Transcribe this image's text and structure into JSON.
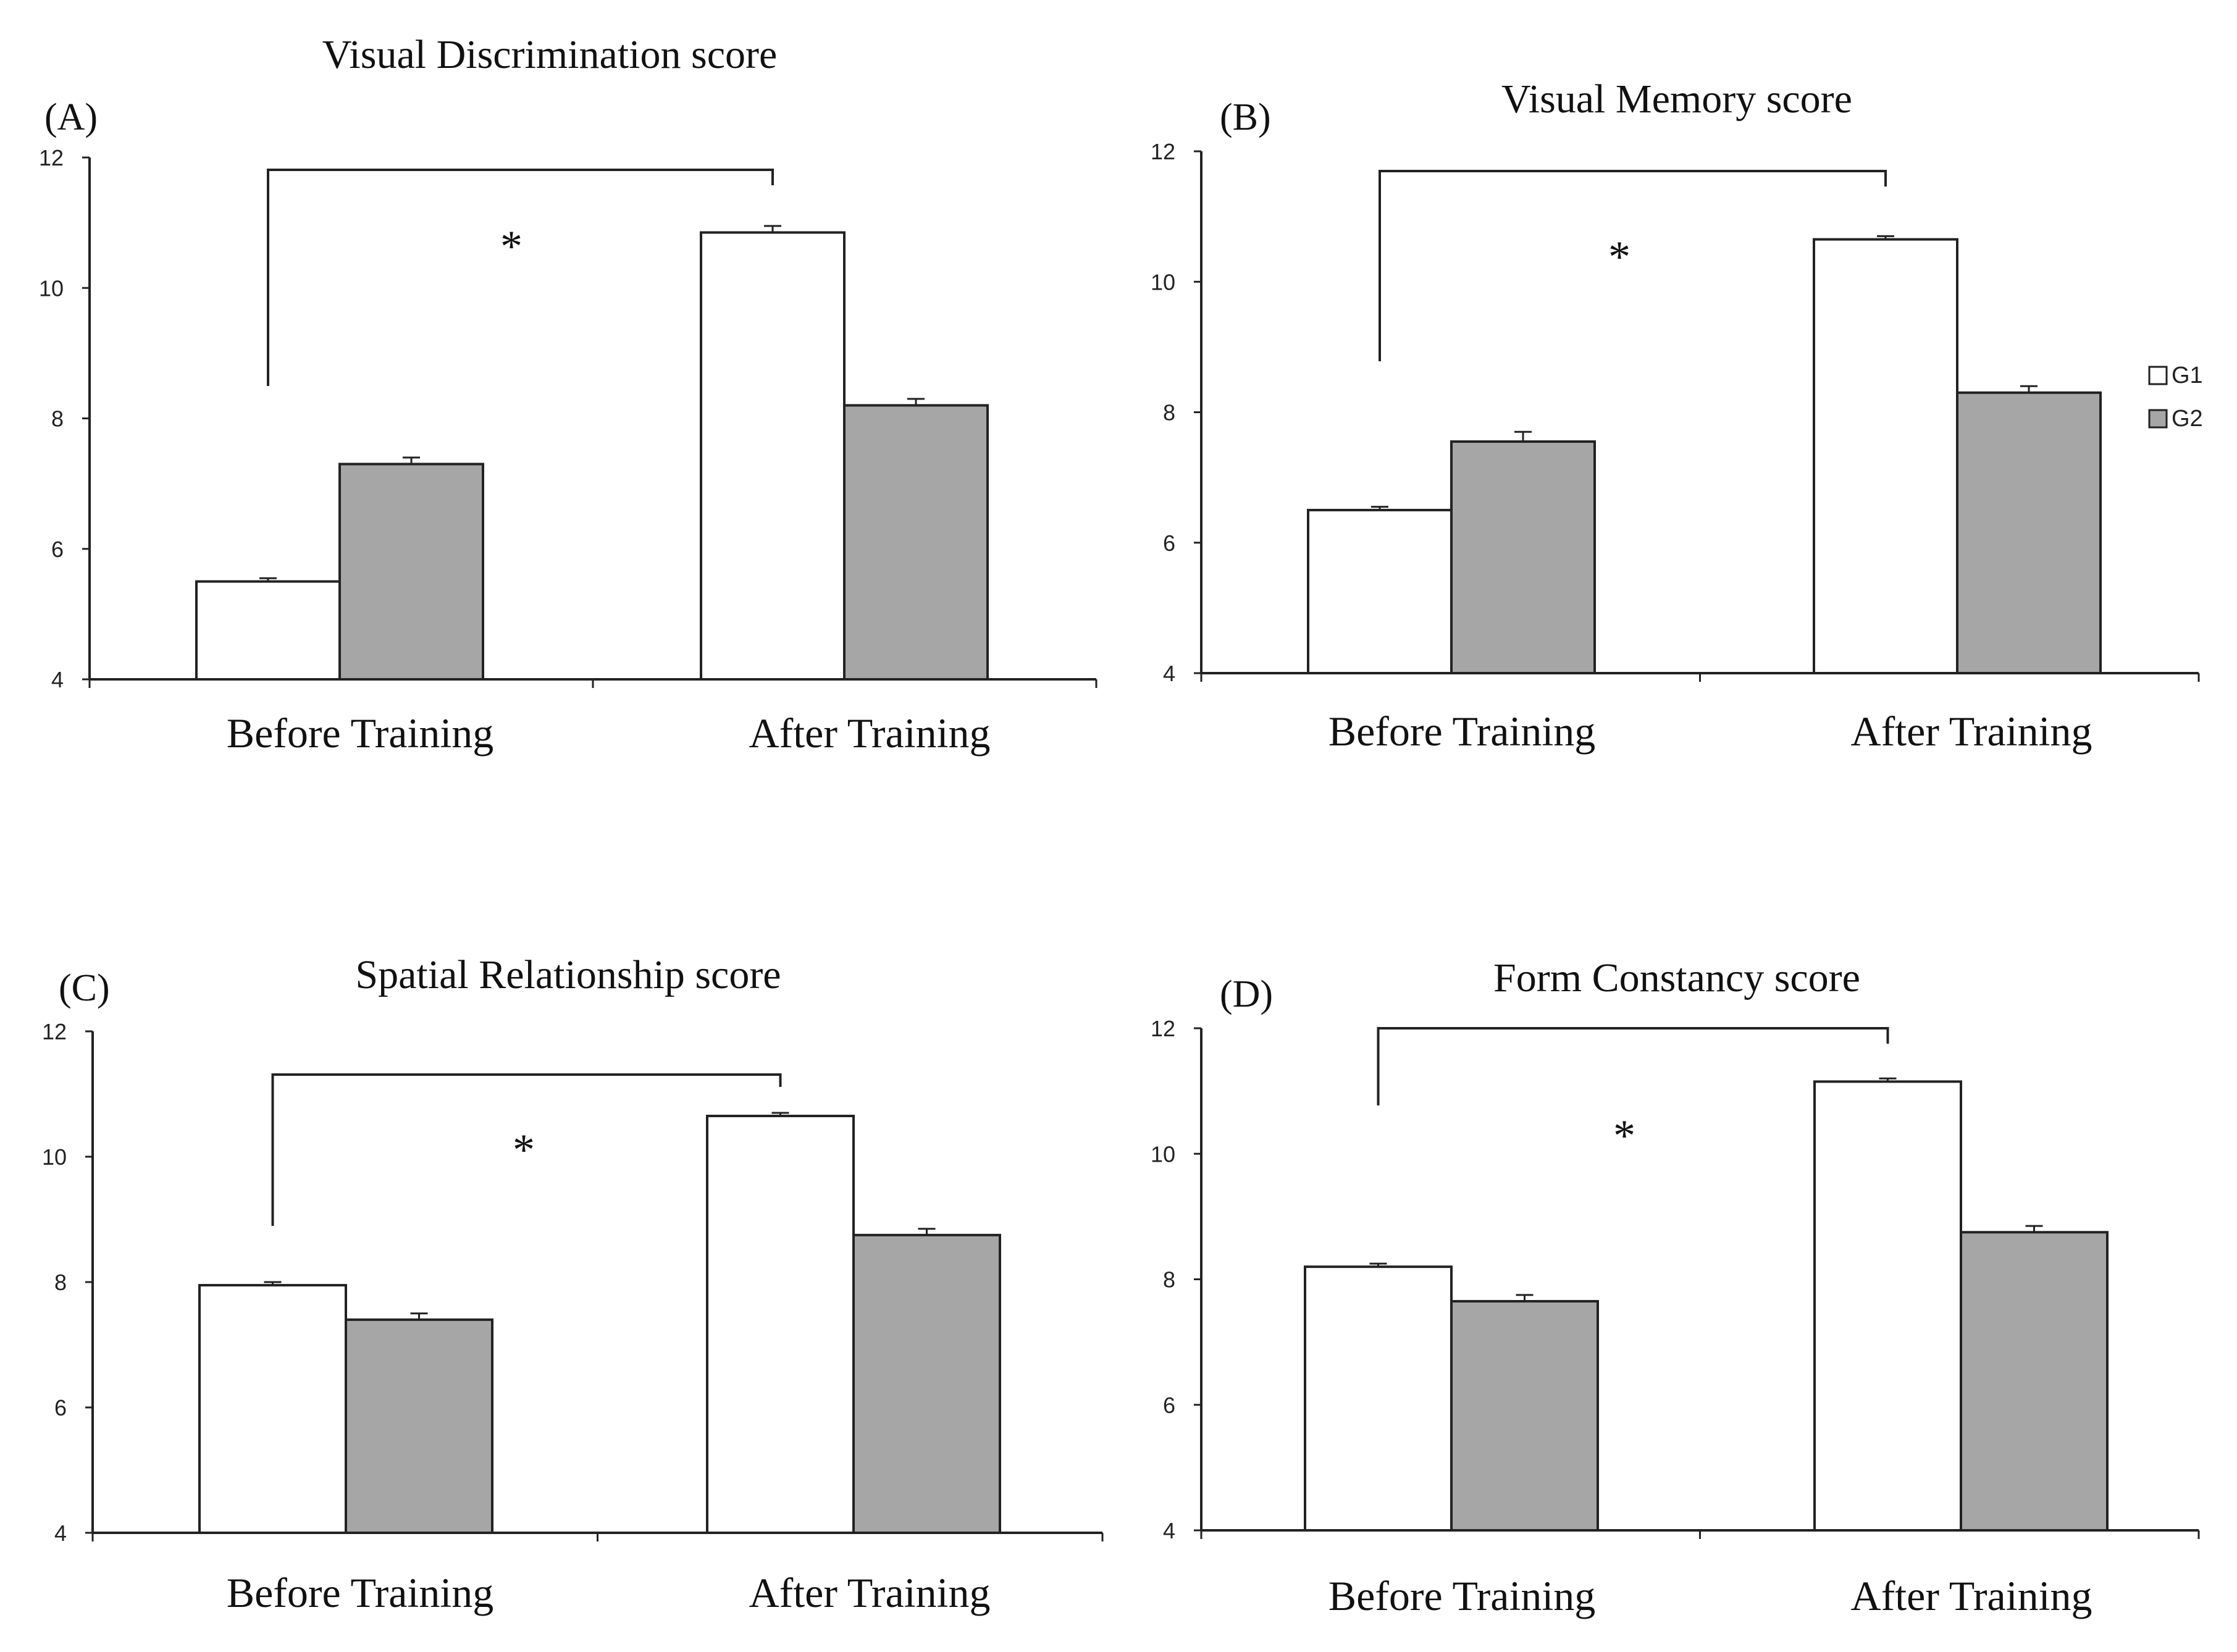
{
  "chart_data": [
    {
      "type": "bar",
      "panel_label": "(A)",
      "title": "Visual Discrimination score",
      "categories": [
        "Before Training",
        "After Training"
      ],
      "series": [
        {
          "name": "G1",
          "color": "#ffffff",
          "values": [
            5.5,
            10.85
          ],
          "errors": [
            0.05,
            0.1
          ]
        },
        {
          "name": "G2",
          "color": "#a6a6a6",
          "values": [
            7.3,
            8.2
          ],
          "errors": [
            0.1,
            0.1
          ]
        }
      ],
      "ylim": [
        4,
        12
      ],
      "yticks": [
        "4",
        "6",
        "8",
        "10",
        "12"
      ],
      "significance": {
        "marker": "*",
        "from": "Before Training",
        "to": "After Training"
      }
    },
    {
      "type": "bar",
      "panel_label": "(B)",
      "title": "Visual Memory score",
      "categories": [
        "Before Training",
        "After Training"
      ],
      "series": [
        {
          "name": "G1",
          "color": "#ffffff",
          "values": [
            6.5,
            10.65
          ],
          "errors": [
            0.05,
            0.05
          ]
        },
        {
          "name": "G2",
          "color": "#a6a6a6",
          "values": [
            7.55,
            8.3
          ],
          "errors": [
            0.15,
            0.1
          ]
        }
      ],
      "ylim": [
        4,
        12
      ],
      "yticks": [
        "4",
        "6",
        "8",
        "10",
        "12"
      ],
      "significance": {
        "marker": "*",
        "from": "Before Training",
        "to": "After Training"
      },
      "legend": {
        "placement": "right",
        "entries": [
          "G1",
          "G2"
        ]
      }
    },
    {
      "type": "bar",
      "panel_label": "(C)",
      "title": "Spatial Relationship score",
      "categories": [
        "Before Training",
        "After Training"
      ],
      "series": [
        {
          "name": "G1",
          "color": "#ffffff",
          "values": [
            7.95,
            10.65
          ],
          "errors": [
            0.05,
            0.05
          ]
        },
        {
          "name": "G2",
          "color": "#a6a6a6",
          "values": [
            7.4,
            8.75
          ],
          "errors": [
            0.1,
            0.1
          ]
        }
      ],
      "ylim": [
        4,
        12
      ],
      "yticks": [
        "4",
        "6",
        "8",
        "10",
        "12"
      ],
      "significance": {
        "marker": "*",
        "from": "Before Training",
        "to": "After Training"
      }
    },
    {
      "type": "bar",
      "panel_label": "(D)",
      "title": "Form Constancy score",
      "categories": [
        "Before Training",
        "After Training"
      ],
      "series": [
        {
          "name": "G1",
          "color": "#ffffff",
          "values": [
            8.2,
            11.15
          ],
          "errors": [
            0.05,
            0.05
          ]
        },
        {
          "name": "G2",
          "color": "#a6a6a6",
          "values": [
            7.65,
            8.75
          ],
          "errors": [
            0.1,
            0.1
          ]
        }
      ],
      "ylim": [
        4,
        12
      ],
      "yticks": [
        "4",
        "6",
        "8",
        "10",
        "12"
      ],
      "significance": {
        "marker": "*",
        "from": "Before Training",
        "to": "After Training"
      }
    }
  ]
}
